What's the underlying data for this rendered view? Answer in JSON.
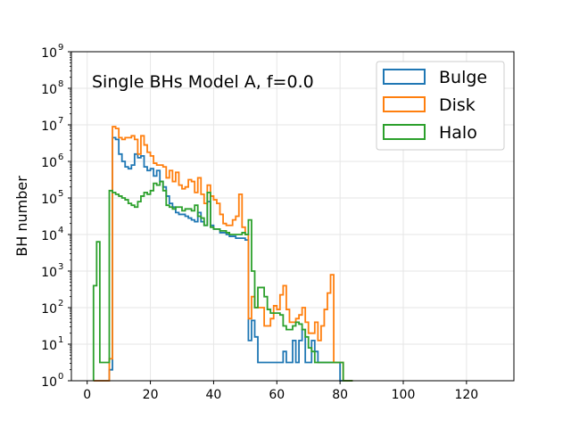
{
  "chart_data": {
    "type": "histogram",
    "title": "",
    "annotation": "Single BHs Model A, f=0.0",
    "xlabel": "",
    "ylabel": "BH number",
    "xlim": [
      -5,
      135
    ],
    "ylim_exp": [
      0,
      9
    ],
    "yscale": "log",
    "grid": true,
    "legend_position": "top-right",
    "x_ticks": [
      "0",
      "20",
      "40",
      "60",
      "80",
      "100",
      "120"
    ],
    "x_tick_values": [
      0,
      20,
      40,
      60,
      80,
      100,
      120
    ],
    "y_ticks": [
      "10",
      "10",
      "10",
      "10",
      "10",
      "10",
      "10",
      "10",
      "10",
      "10"
    ],
    "y_tick_exponents": [
      "0",
      "1",
      "2",
      "3",
      "4",
      "5",
      "6",
      "7",
      "8",
      "9"
    ],
    "bin_width": 1,
    "x_start": 2,
    "series": [
      {
        "name": "Bulge",
        "color": "#1f77b4",
        "log10_values": [
          0,
          0,
          0,
          0,
          0,
          0.3,
          6.65,
          6.6,
          6.2,
          6.0,
          5.85,
          5.8,
          5.9,
          6.2,
          6.1,
          6.15,
          5.85,
          5.75,
          5.8,
          5.6,
          5.75,
          5.45,
          5.3,
          5.05,
          4.85,
          4.75,
          4.6,
          4.55,
          4.55,
          4.5,
          4.45,
          4.4,
          4.35,
          4.6,
          4.35,
          4.25,
          4.9,
          4.25,
          4.15,
          4.15,
          4.05,
          4.05,
          4.0,
          3.95,
          3.95,
          3.9,
          3.9,
          3.9,
          3.85,
          1.1,
          1.65,
          1.2,
          0.5,
          0.5,
          0.5,
          0.5,
          0.5,
          0.5,
          0.5,
          0.5,
          0.8,
          0.5,
          0.5,
          1.1,
          0.5,
          1.1,
          1.4,
          0.5,
          0.5,
          1.1,
          0.8,
          0.5,
          0.5,
          0.5,
          0.5,
          0.5,
          0.5,
          0.5,
          0,
          0,
          0,
          0
        ]
      },
      {
        "name": "Disk",
        "color": "#ff7f0e",
        "log10_values": [
          0,
          0,
          0,
          0,
          0,
          0.6,
          6.95,
          6.9,
          6.65,
          6.6,
          6.65,
          6.65,
          6.7,
          6.6,
          6.2,
          6.7,
          6.45,
          6.25,
          6.15,
          5.95,
          5.9,
          5.9,
          5.85,
          5.55,
          5.75,
          5.45,
          5.7,
          5.35,
          5.25,
          5.3,
          5.5,
          5.45,
          5.15,
          5.55,
          5.1,
          4.85,
          5.35,
          5.05,
          4.95,
          4.85,
          4.55,
          4.3,
          4.25,
          4.25,
          4.4,
          4.5,
          5.1,
          4.2,
          4.0,
          1.7,
          2.3,
          2.0,
          2.0,
          2.0,
          1.5,
          1.5,
          1.7,
          2.05,
          1.95,
          2.35,
          2.6,
          1.95,
          1.6,
          1.6,
          1.7,
          1.8,
          2.0,
          1.6,
          1.3,
          1.3,
          1.6,
          1.1,
          1.5,
          1.95,
          2.4,
          2.9,
          0.5,
          0.5,
          0.5,
          0,
          0,
          0
        ]
      },
      {
        "name": "Halo",
        "color": "#2ca02c",
        "log10_values": [
          2.6,
          3.8,
          0.5,
          0.5,
          0.5,
          5.2,
          5.15,
          5.1,
          5.05,
          5.0,
          4.95,
          4.85,
          4.8,
          4.75,
          4.9,
          5.05,
          5.15,
          5.1,
          5.2,
          5.4,
          5.35,
          5.45,
          5.2,
          4.8,
          4.75,
          4.7,
          4.75,
          4.75,
          4.65,
          4.7,
          4.7,
          4.65,
          4.8,
          4.5,
          4.45,
          4.25,
          5.15,
          4.2,
          4.15,
          4.15,
          4.1,
          4.1,
          4.05,
          4.0,
          4.0,
          4.0,
          4.0,
          4.05,
          4.0,
          4.4,
          3.0,
          2.0,
          2.55,
          2.55,
          2.3,
          1.95,
          1.85,
          1.85,
          1.85,
          1.8,
          1.5,
          1.4,
          1.4,
          1.5,
          1.6,
          1.55,
          1.4,
          1.2,
          0.9,
          0.8,
          0.5,
          0.5,
          0.5,
          0.5,
          0.5,
          0.5,
          0.5,
          0.5,
          0.5,
          0,
          0,
          0
        ]
      }
    ]
  }
}
